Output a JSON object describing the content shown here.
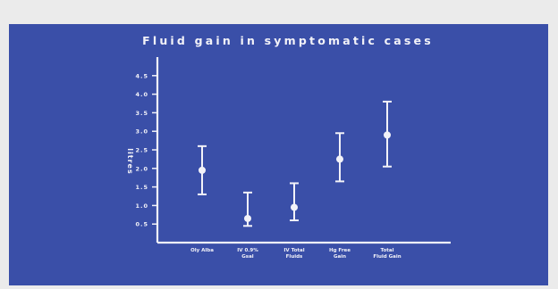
{
  "colors": {
    "background": "#3a4fa8",
    "frame": "#ebebeb",
    "foreground": "#f2f2f8"
  },
  "chart_data": {
    "type": "scatter",
    "title": "Fluid gain in symptomatic cases",
    "subtitle": "",
    "xlabel": "",
    "ylabel": "litres",
    "ylim": [
      0,
      5
    ],
    "yticks": [
      "0.5",
      "1.0",
      "1.5",
      "2.0",
      "2.5",
      "3.0",
      "3.5",
      "4.0",
      "4.5"
    ],
    "yticks_values": [
      0.5,
      1.0,
      1.5,
      2.0,
      2.5,
      3.0,
      3.5,
      4.0,
      4.5
    ],
    "grid": false,
    "legend": "none",
    "categories": [
      [
        "Oly Alba"
      ],
      [
        "IV 0.9%",
        "Gsal"
      ],
      [
        "IV Total",
        "Fluids"
      ],
      [
        "Hg Free",
        "Gain"
      ],
      [
        "Total",
        "Fluid Gain"
      ]
    ],
    "series": [
      {
        "values": [
          1.95,
          0.65,
          0.95,
          2.25,
          2.9
        ],
        "lower": [
          1.3,
          0.45,
          0.6,
          1.65,
          2.05
        ],
        "upper": [
          2.6,
          1.35,
          1.6,
          2.95,
          3.8
        ]
      }
    ]
  }
}
